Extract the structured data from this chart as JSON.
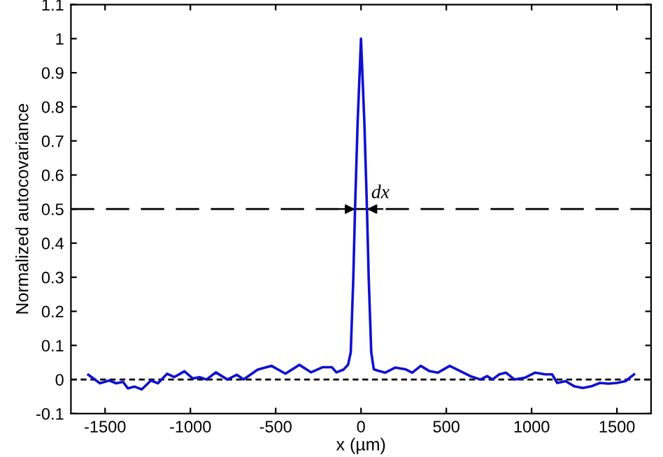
{
  "chart_data": {
    "type": "line",
    "xlabel": "x (µm)",
    "ylabel": "Normalized autocovariance",
    "xlim": [
      -1700,
      1700
    ],
    "xticks": [
      -1500,
      -1000,
      -500,
      0,
      500,
      1000,
      1500
    ],
    "ylim": [
      -0.1,
      1.1
    ],
    "yticks": [
      -0.1,
      0,
      0.1,
      0.2,
      0.3,
      0.4,
      0.5,
      0.6,
      0.7,
      0.8,
      0.9,
      1,
      1.1
    ],
    "grid": false,
    "legend": false,
    "series": [
      {
        "color": "#1010d0",
        "x": [
          -1598,
          -1530,
          -1476,
          -1435,
          -1394,
          -1367,
          -1326,
          -1285,
          -1231,
          -1190,
          -1136,
          -1095,
          -1035,
          -986,
          -946,
          -905,
          -851,
          -783,
          -728,
          -688,
          -606,
          -524,
          -443,
          -361,
          -293,
          -226,
          -171,
          -144,
          -103,
          -76,
          -60,
          -45,
          -35,
          -20,
          0,
          20,
          35,
          45,
          60,
          75,
          100,
          141,
          200,
          260,
          300,
          350,
          400,
          450,
          520,
          580,
          640,
          700,
          740,
          770,
          810,
          850,
          900,
          960,
          1020,
          1080,
          1120,
          1150,
          1200,
          1250,
          1300,
          1350,
          1400,
          1450,
          1500,
          1550,
          1600
        ],
        "values": [
          0.014,
          -0.011,
          -0.003,
          -0.011,
          -0.007,
          -0.026,
          -0.021,
          -0.029,
          -0.003,
          -0.011,
          0.017,
          0.007,
          0.024,
          0.003,
          0.007,
          0,
          0.021,
          0,
          0.014,
          0,
          0.029,
          0.04,
          0.017,
          0.043,
          0.021,
          0.036,
          0.036,
          0.021,
          0.029,
          0.043,
          0.08,
          0.3,
          0.5,
          0.75,
          1.0,
          0.75,
          0.5,
          0.3,
          0.08,
          0.03,
          0.026,
          0.02,
          0.035,
          0.03,
          0.02,
          0.04,
          0.025,
          0.02,
          0.04,
          0.025,
          0.01,
          0,
          0.01,
          0,
          0.015,
          0.02,
          0,
          0.005,
          0.02,
          0.015,
          0.015,
          -0.01,
          -0.005,
          -0.02,
          -0.025,
          -0.02,
          -0.01,
          -0.012,
          -0.01,
          -0.005,
          0.015
        ]
      }
    ],
    "ref_lines": [
      {
        "axis": "y",
        "value": 0.5,
        "color": "#000000",
        "line_style": "longdash"
      },
      {
        "axis": "y",
        "value": 0,
        "color": "#000000",
        "line_style": "dashed"
      }
    ],
    "annotations": [
      {
        "text": "dx",
        "x": 0,
        "y": 0.5
      }
    ]
  }
}
